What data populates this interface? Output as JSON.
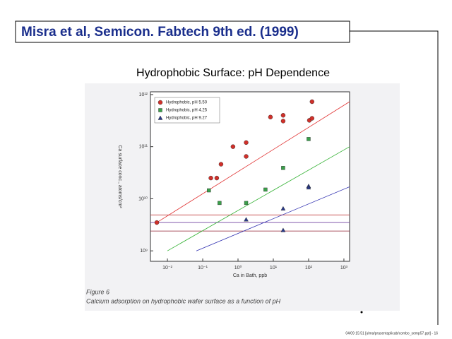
{
  "slide_title": "Misra et al, Semicon. Fabtech 9th ed. (1999)",
  "caption": {
    "label": "Figure 6",
    "text": "Calcium adsorption on hydrophobic wafer surface as a function of pH"
  },
  "footer": "04/09 15:51  [ulma/prasentaplicab/combo_semp57.ppt] - 16",
  "chart_data": {
    "type": "scatter",
    "title": "Hydrophobic Surface: pH Dependence",
    "x_label": "Ca in Bath, ppb",
    "y_label": "Ca surface conc., atoms/cm²",
    "xscale": "log",
    "yscale": "log",
    "xlim": [
      0.0033,
      1450
    ],
    "ylim": [
      630000000,
      1130000000000
    ],
    "xticks": [
      {
        "value": 0.01,
        "label": "10⁻²"
      },
      {
        "value": 0.1,
        "label": "10⁻¹"
      },
      {
        "value": 1,
        "label": "10⁰"
      },
      {
        "value": 10,
        "label": "10¹"
      },
      {
        "value": 100,
        "label": "10²"
      },
      {
        "value": 1000,
        "label": "10³"
      }
    ],
    "yticks": [
      {
        "value": 1000000000,
        "label": "10⁹"
      },
      {
        "value": 10000000000,
        "label": "10¹⁰"
      },
      {
        "value": 100000000000,
        "label": "10¹¹"
      },
      {
        "value": 1000000000000,
        "label": "10¹²"
      }
    ],
    "legend": "upper left",
    "series": [
      {
        "name": "Hydrophobic, pH 5.50",
        "color": "#d0302a",
        "marker": "circle",
        "x": [
          0.005,
          0.17,
          0.25,
          0.33,
          0.72,
          1.7,
          1.7,
          8.3,
          19,
          19,
          105,
          125,
          125
        ],
        "values": [
          3500000000,
          25000000000,
          25000000000,
          46000000000,
          100000000000,
          120000000000,
          65000000000,
          370000000000,
          400000000000,
          310000000000,
          320000000000,
          350000000000,
          730000000000
        ]
      },
      {
        "name": "Hydrophobic, pH 4.25",
        "color": "#3aa04a",
        "marker": "square",
        "x": [
          0.15,
          0.3,
          1.7,
          6,
          19,
          100
        ],
        "values": [
          14500000000,
          8300000000,
          8300000000,
          15000000000,
          39000000000,
          140000000000
        ]
      },
      {
        "name": "Hydrophobic, pH 9.27",
        "color": "#2a3a8a",
        "marker": "triangle",
        "x": [
          1.7,
          19,
          19,
          100,
          100
        ],
        "values": [
          4000000000,
          6500000000,
          2500000000,
          17500000000,
          16500000000
        ]
      }
    ],
    "fit_lines": [
      {
        "color": "#e03030",
        "x": [
          0.005,
          1450
        ],
        "values": [
          3500000000,
          730000000000
        ]
      },
      {
        "color": "#30b030",
        "x": [
          0.01,
          1450
        ],
        "values": [
          1000000000,
          100000000000
        ]
      },
      {
        "color": "#3030b0",
        "x": [
          0.066,
          1450
        ],
        "values": [
          1000000000,
          17000000000
        ]
      }
    ],
    "reference_lines": [
      {
        "color": "#c04040",
        "value": 4900000000
      },
      {
        "color": "#7040a0",
        "value": 3500000000
      },
      {
        "color": "#902030",
        "value": 2400000000
      }
    ]
  }
}
